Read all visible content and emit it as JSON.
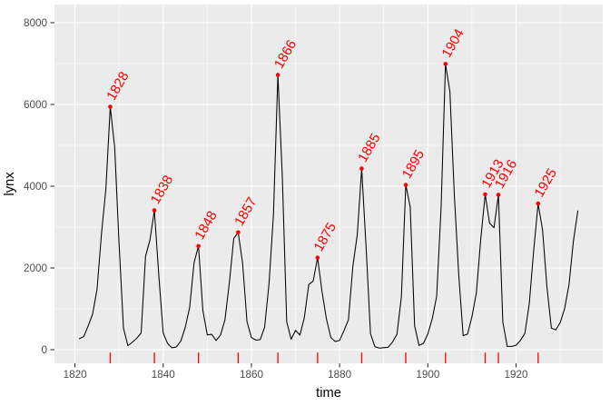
{
  "chart_data": {
    "type": "line",
    "title": "",
    "xlabel": "time",
    "ylabel": "lynx",
    "x_start": 1821,
    "x_end": 1934,
    "series": [
      {
        "name": "lynx",
        "values": [
          269,
          321,
          585,
          871,
          1475,
          2821,
          3928,
          5943,
          4950,
          2577,
          523,
          98,
          184,
          279,
          409,
          2285,
          2685,
          3409,
          1824,
          409,
          151,
          45,
          68,
          213,
          546,
          1033,
          2129,
          2536,
          957,
          361,
          377,
          225,
          360,
          731,
          1638,
          2725,
          2871,
          2119,
          684,
          299,
          236,
          245,
          552,
          1623,
          3311,
          6721,
          4254,
          687,
          255,
          473,
          358,
          784,
          1594,
          1676,
          2251,
          1426,
          756,
          299,
          201,
          229,
          469,
          736,
          2042,
          2811,
          4431,
          2511,
          389,
          73,
          39,
          49,
          59,
          188,
          377,
          1292,
          4031,
          3495,
          587,
          105,
          153,
          387,
          758,
          1307,
          3465,
          6991,
          6313,
          3794,
          1836,
          345,
          382,
          808,
          1388,
          2713,
          3800,
          3091,
          2985,
          3790,
          674,
          81,
          80,
          108,
          229,
          399,
          1132,
          2432,
          3574,
          2935,
          1537,
          529,
          485,
          662,
          1000,
          1590,
          2657,
          3396
        ]
      }
    ],
    "peaks": [
      {
        "label": "1828",
        "year": 1828,
        "value": 5943
      },
      {
        "label": "1838",
        "year": 1838,
        "value": 3409
      },
      {
        "label": "1848",
        "year": 1848,
        "value": 2536
      },
      {
        "label": "1857",
        "year": 1857,
        "value": 2871
      },
      {
        "label": "1866",
        "year": 1866,
        "value": 6721
      },
      {
        "label": "1875",
        "year": 1875,
        "value": 2251
      },
      {
        "label": "1885",
        "year": 1885,
        "value": 4431
      },
      {
        "label": "1895",
        "year": 1895,
        "value": 4031
      },
      {
        "label": "1904",
        "year": 1904,
        "value": 6991
      },
      {
        "label": "1913",
        "year": 1913,
        "value": 3800
      },
      {
        "label": "1916",
        "year": 1916,
        "value": 3790
      },
      {
        "label": "1925",
        "year": 1925,
        "value": 3574
      }
    ],
    "rug_at_peak_years": true,
    "x_ticks": [
      1820,
      1840,
      1860,
      1880,
      1900,
      1920
    ],
    "x_minor_ticks": [
      1830,
      1850,
      1870,
      1890,
      1910,
      1930
    ],
    "y_ticks": [
      0,
      2000,
      4000,
      6000,
      8000
    ],
    "y_minor_ticks": [
      1000,
      3000,
      5000,
      7000
    ],
    "xlim": [
      1815.35,
      1939.65
    ],
    "ylim": [
      -333,
      8444
    ],
    "grid": true,
    "legend_position": "none",
    "peak_label_angle_deg": 60,
    "colors": {
      "panel_background": "#ebebeb",
      "major_grid": "#ffffff",
      "minor_grid": "#ffffff",
      "series_line": "#000000",
      "peak_accent": "#ff0000",
      "tick_text": "#4d4d4d",
      "axis_tick": "#333333",
      "axis_title": "#000000"
    }
  }
}
